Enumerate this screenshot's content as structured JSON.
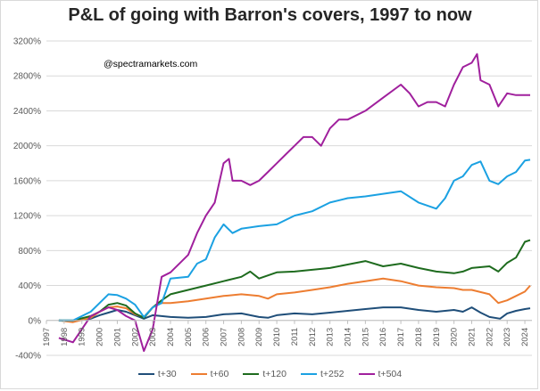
{
  "chart_data": {
    "type": "line",
    "title": "P&L of going with Barron's covers, 1997 to now",
    "annotation": "@spectramarkets.com",
    "xlabel": "",
    "ylabel": "",
    "xlim": [
      1997,
      2024.4
    ],
    "ylim": [
      -400,
      3200
    ],
    "yticks": [
      -400,
      0,
      400,
      800,
      1200,
      1600,
      2000,
      2400,
      2800,
      3200
    ],
    "ytick_labels": [
      "-400%",
      "0%",
      "400%",
      "800%",
      "1200%",
      "1600%",
      "2000%",
      "2400%",
      "2800%",
      "3200%"
    ],
    "xticks": [
      1997,
      1998,
      1999,
      2000,
      2001,
      2002,
      2003,
      2004,
      2005,
      2006,
      2007,
      2008,
      2009,
      2010,
      2011,
      2012,
      2013,
      2014,
      2015,
      2016,
      2017,
      2018,
      2019,
      2020,
      2021,
      2022,
      2023,
      2024
    ],
    "xtick_labels": [
      "1997",
      "1998",
      "1999",
      "2000",
      "2001",
      "2002",
      "2003",
      "2004",
      "2005",
      "2006",
      "2007",
      "2008",
      "2009",
      "2010",
      "2011",
      "2012",
      "2013",
      "2014",
      "2015",
      "2016",
      "2017",
      "2018",
      "2019",
      "2020",
      "2021",
      "2022",
      "2023",
      "2024"
    ],
    "grid": "horizontal",
    "legend_position": "bottom",
    "series": [
      {
        "name": "t+30",
        "color": "#1f4e79",
        "x": [
          1997.7,
          1998.5,
          1999.5,
          2000.0,
          2000.5,
          2001.0,
          2001.5,
          2002.0,
          2002.5,
          2003.0,
          2004.0,
          2005.0,
          2006.0,
          2007.0,
          2008.0,
          2009.0,
          2009.5,
          2010.0,
          2011.0,
          2012.0,
          2013.0,
          2014.0,
          2015.0,
          2016.0,
          2017.0,
          2018.0,
          2019.0,
          2020.0,
          2020.5,
          2021.0,
          2021.5,
          2022.0,
          2022.6,
          2023.0,
          2023.5,
          2024.0,
          2024.3
        ],
        "y": [
          0,
          -10,
          20,
          60,
          90,
          120,
          100,
          60,
          20,
          60,
          40,
          30,
          40,
          70,
          80,
          40,
          30,
          60,
          80,
          70,
          90,
          110,
          130,
          150,
          150,
          120,
          100,
          120,
          100,
          150,
          90,
          40,
          20,
          80,
          110,
          130,
          140
        ]
      },
      {
        "name": "t+60",
        "color": "#ed7d31",
        "x": [
          1997.7,
          1998.5,
          1999.5,
          2000.0,
          2000.5,
          2001.0,
          2001.5,
          2002.0,
          2002.5,
          2003.0,
          2003.5,
          2004.0,
          2005.0,
          2006.0,
          2007.0,
          2008.0,
          2009.0,
          2009.5,
          2010.0,
          2011.0,
          2012.0,
          2013.0,
          2014.0,
          2015.0,
          2016.0,
          2017.0,
          2018.0,
          2019.0,
          2020.0,
          2020.5,
          2021.0,
          2022.0,
          2022.5,
          2023.0,
          2023.5,
          2024.0,
          2024.3
        ],
        "y": [
          0,
          -20,
          30,
          100,
          150,
          160,
          140,
          70,
          40,
          150,
          200,
          200,
          220,
          250,
          280,
          300,
          280,
          250,
          300,
          320,
          350,
          380,
          420,
          450,
          480,
          450,
          400,
          380,
          370,
          350,
          350,
          300,
          200,
          230,
          280,
          330,
          400
        ]
      },
      {
        "name": "t+120",
        "color": "#1e6b1e",
        "x": [
          1997.7,
          1998.5,
          1999.5,
          2000.0,
          2000.5,
          2001.0,
          2001.5,
          2002.0,
          2002.5,
          2003.0,
          2003.5,
          2004.0,
          2005.0,
          2006.0,
          2007.0,
          2008.0,
          2008.5,
          2009.0,
          2010.0,
          2011.0,
          2012.0,
          2013.0,
          2014.0,
          2015.0,
          2016.0,
          2017.0,
          2018.0,
          2019.0,
          2020.0,
          2020.5,
          2021.0,
          2022.0,
          2022.5,
          2023.0,
          2023.5,
          2024.0,
          2024.3
        ],
        "y": [
          0,
          0,
          50,
          100,
          180,
          200,
          170,
          80,
          30,
          150,
          230,
          300,
          350,
          400,
          450,
          500,
          560,
          480,
          550,
          560,
          580,
          600,
          640,
          680,
          620,
          650,
          600,
          560,
          540,
          560,
          600,
          620,
          560,
          660,
          720,
          900,
          920
        ]
      },
      {
        "name": "t+252",
        "color": "#1ba1e2",
        "x": [
          1997.7,
          1998.5,
          1999.5,
          2000.0,
          2000.5,
          2001.0,
          2001.5,
          2002.0,
          2002.5,
          2003.0,
          2003.5,
          2004.0,
          2005.0,
          2005.5,
          2006.0,
          2006.5,
          2007.0,
          2007.5,
          2008.0,
          2009.0,
          2010.0,
          2010.5,
          2011.0,
          2012.0,
          2013.0,
          2014.0,
          2015.0,
          2016.0,
          2017.0,
          2018.0,
          2019.0,
          2019.5,
          2020.0,
          2020.5,
          2021.0,
          2021.5,
          2022.0,
          2022.5,
          2023.0,
          2023.5,
          2024.0,
          2024.3
        ],
        "y": [
          0,
          0,
          100,
          200,
          300,
          290,
          250,
          180,
          40,
          150,
          200,
          480,
          500,
          650,
          700,
          950,
          1100,
          1000,
          1050,
          1080,
          1100,
          1150,
          1200,
          1250,
          1350,
          1400,
          1420,
          1450,
          1480,
          1350,
          1280,
          1400,
          1600,
          1650,
          1780,
          1820,
          1600,
          1560,
          1650,
          1700,
          1830,
          1840
        ]
      },
      {
        "name": "t+504",
        "color": "#a0209d",
        "x": [
          1997.7,
          1998.5,
          1999.5,
          2000.0,
          2000.5,
          2001.0,
          2001.5,
          2002.0,
          2002.5,
          2003.0,
          2003.5,
          2004.0,
          2005.0,
          2005.5,
          2006.0,
          2006.5,
          2007.0,
          2007.3,
          2007.5,
          2008.0,
          2008.5,
          2009.0,
          2009.5,
          2010.0,
          2010.5,
          2011.0,
          2011.5,
          2012.0,
          2012.5,
          2013.0,
          2013.5,
          2014.0,
          2015.0,
          2016.0,
          2017.0,
          2017.5,
          2018.0,
          2018.5,
          2019.0,
          2019.5,
          2020.0,
          2020.5,
          2021.0,
          2021.3,
          2021.5,
          2022.0,
          2022.5,
          2023.0,
          2023.5,
          2024.0,
          2024.3
        ],
        "y": [
          -200,
          -250,
          50,
          100,
          150,
          120,
          50,
          0,
          -350,
          -100,
          500,
          550,
          750,
          1000,
          1200,
          1350,
          1800,
          1850,
          1600,
          1600,
          1550,
          1600,
          1700,
          1800,
          1900,
          2000,
          2100,
          2100,
          2000,
          2200,
          2300,
          2300,
          2400,
          2550,
          2700,
          2600,
          2450,
          2500,
          2500,
          2450,
          2700,
          2900,
          2950,
          3050,
          2750,
          2700,
          2450,
          2600,
          2580,
          2580,
          2580
        ]
      }
    ]
  }
}
